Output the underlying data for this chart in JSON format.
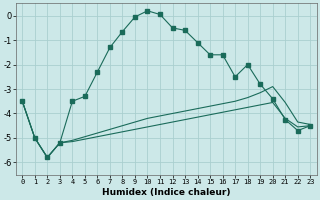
{
  "title": "",
  "xlabel": "Humidex (Indice chaleur)",
  "background_color": "#cce8e8",
  "grid_color": "#aacfcf",
  "line_color": "#1a6b5a",
  "xlim": [
    -0.5,
    23.5
  ],
  "ylim": [
    -6.5,
    0.5
  ],
  "yticks": [
    0,
    -1,
    -2,
    -3,
    -4,
    -5,
    -6
  ],
  "xticks": [
    0,
    1,
    2,
    3,
    4,
    5,
    6,
    7,
    8,
    9,
    10,
    11,
    12,
    13,
    14,
    15,
    16,
    17,
    18,
    19,
    20,
    21,
    22,
    23
  ],
  "main_x": [
    0,
    1,
    2,
    3,
    4,
    5,
    6,
    7,
    8,
    9,
    10,
    11,
    12,
    13,
    14,
    15,
    16,
    17,
    18,
    19,
    20,
    21,
    22,
    23
  ],
  "main_y": [
    -3.5,
    -5.0,
    -5.8,
    -5.2,
    -3.5,
    -3.3,
    -2.3,
    -1.3,
    -0.65,
    -0.05,
    0.2,
    0.05,
    -0.5,
    -0.6,
    -1.1,
    -1.6,
    -1.6,
    -2.5,
    -2.0,
    -2.8,
    -3.4,
    -4.25,
    -4.7,
    -4.5
  ],
  "low1_x": [
    0,
    1,
    2,
    3,
    4,
    5,
    6,
    7,
    8,
    9,
    10,
    11,
    12,
    13,
    14,
    15,
    16,
    17,
    18,
    19,
    20,
    21,
    22,
    23
  ],
  "low1_y": [
    -3.5,
    -5.0,
    -5.8,
    -5.2,
    -5.15,
    -5.05,
    -4.95,
    -4.85,
    -4.75,
    -4.65,
    -4.55,
    -4.45,
    -4.35,
    -4.25,
    -4.15,
    -4.05,
    -3.95,
    -3.85,
    -3.75,
    -3.65,
    -3.55,
    -4.2,
    -4.55,
    -4.5
  ],
  "low2_x": [
    0,
    1,
    2,
    3,
    4,
    5,
    6,
    7,
    8,
    9,
    10,
    11,
    12,
    13,
    14,
    15,
    16,
    17,
    18,
    19,
    20,
    21,
    22,
    23
  ],
  "low2_y": [
    -3.5,
    -5.0,
    -5.8,
    -5.2,
    -5.1,
    -4.95,
    -4.8,
    -4.65,
    -4.5,
    -4.35,
    -4.2,
    -4.1,
    -4.0,
    -3.9,
    -3.8,
    -3.7,
    -3.6,
    -3.5,
    -3.35,
    -3.15,
    -2.9,
    -3.55,
    -4.35,
    -4.45
  ]
}
